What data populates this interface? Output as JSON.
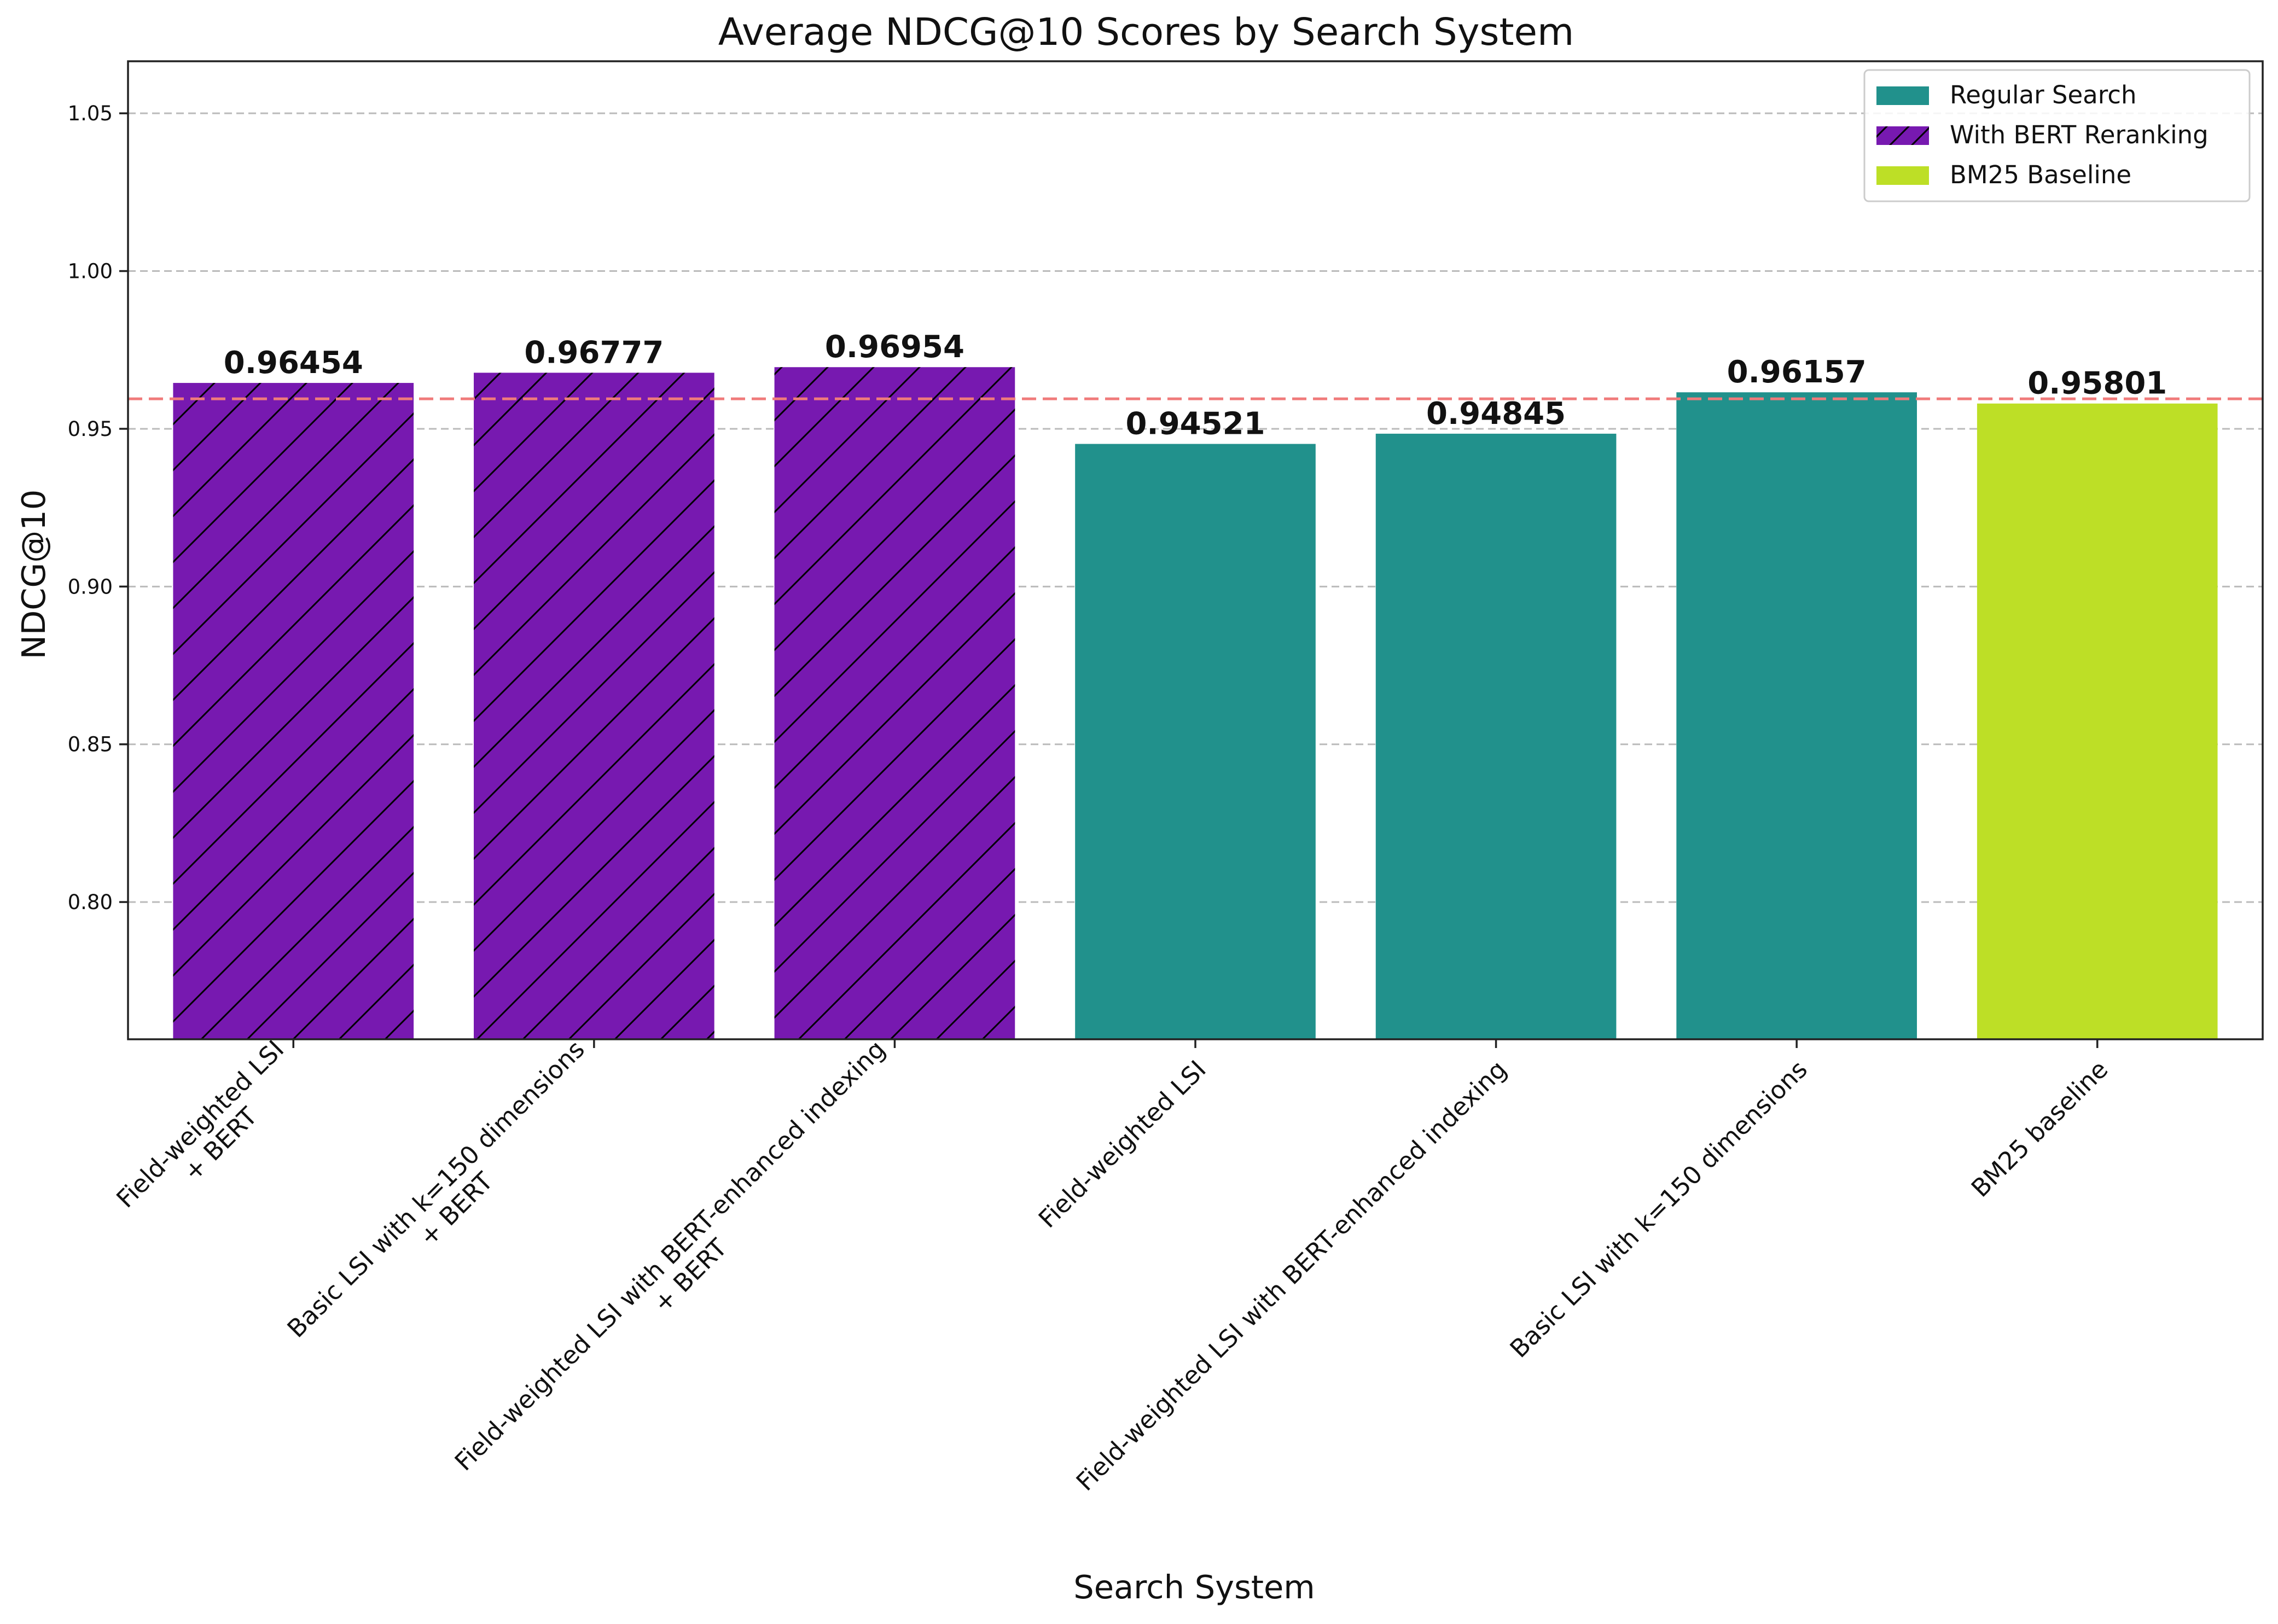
{
  "chart_data": {
    "type": "bar",
    "title": "Average NDCG@10 Scores by Search System",
    "xlabel": "Search System",
    "ylabel": "NDCG@10",
    "ylim": [
      0.7565,
      1.0665
    ],
    "yticks": [
      0.8,
      0.85,
      0.9,
      0.95,
      1.0,
      1.05
    ],
    "ytick_labels": [
      "0.80",
      "0.85",
      "0.90",
      "0.95",
      "1.00",
      "1.05"
    ],
    "grid": "horizontal dashed",
    "reference_line": {
      "value": 0.9595,
      "style": "dashed",
      "color": "#f07b7b"
    },
    "categories": [
      [
        "Field-weighted LSI",
        "+ BERT"
      ],
      [
        "Basic LSI with k=150 dimensions",
        "+ BERT"
      ],
      [
        "Field-weighted LSI with BERT-enhanced indexing",
        "+ BERT"
      ],
      [
        "Field-weighted LSI"
      ],
      [
        "Field-weighted LSI with BERT-enhanced indexing"
      ],
      [
        "Basic LSI with k=150 dimensions"
      ],
      [
        "BM25 baseline"
      ]
    ],
    "values": [
      0.96454,
      0.96777,
      0.96954,
      0.94521,
      0.94845,
      0.96157,
      0.95801
    ],
    "value_labels": [
      "0.96454",
      "0.96777",
      "0.96954",
      "0.94521",
      "0.94845",
      "0.96157",
      "0.95801"
    ],
    "groups": [
      "With BERT Reranking",
      "With BERT Reranking",
      "With BERT Reranking",
      "Regular Search",
      "Regular Search",
      "Regular Search",
      "BM25 Baseline"
    ],
    "legend": {
      "position": "top-right",
      "entries": [
        {
          "label": "Regular Search",
          "color": "#21918c",
          "hatch": false
        },
        {
          "label": "With BERT Reranking",
          "color": "#7719b0",
          "hatch": true
        },
        {
          "label": "BM25 Baseline",
          "color": "#bddf26",
          "hatch": false
        }
      ]
    }
  }
}
